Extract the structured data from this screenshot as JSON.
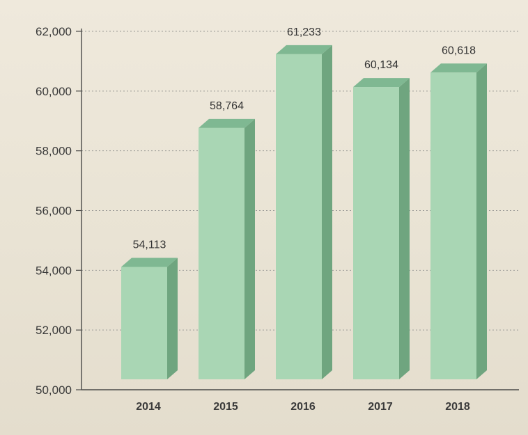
{
  "chart_data": {
    "type": "bar",
    "categories": [
      "2014",
      "2015",
      "2016",
      "2017",
      "2018"
    ],
    "values": [
      54113,
      58764,
      61233,
      60134,
      60618
    ],
    "value_labels": [
      "54,113",
      "58,764",
      "61,233",
      "60,134",
      "60,618"
    ],
    "y_ticks": [
      50000,
      52000,
      54000,
      56000,
      58000,
      60000,
      62000
    ],
    "y_tick_labels": [
      "50,000",
      "52,000",
      "54,000",
      "56,000",
      "58,000",
      "60,000",
      "62,000"
    ],
    "ylim": [
      50000,
      62000
    ],
    "grid": true,
    "style": "3d-bar",
    "colors": {
      "bar_front": "#a9d6b4",
      "bar_top": "#7fb892",
      "bar_side": "#6fa57f"
    }
  }
}
